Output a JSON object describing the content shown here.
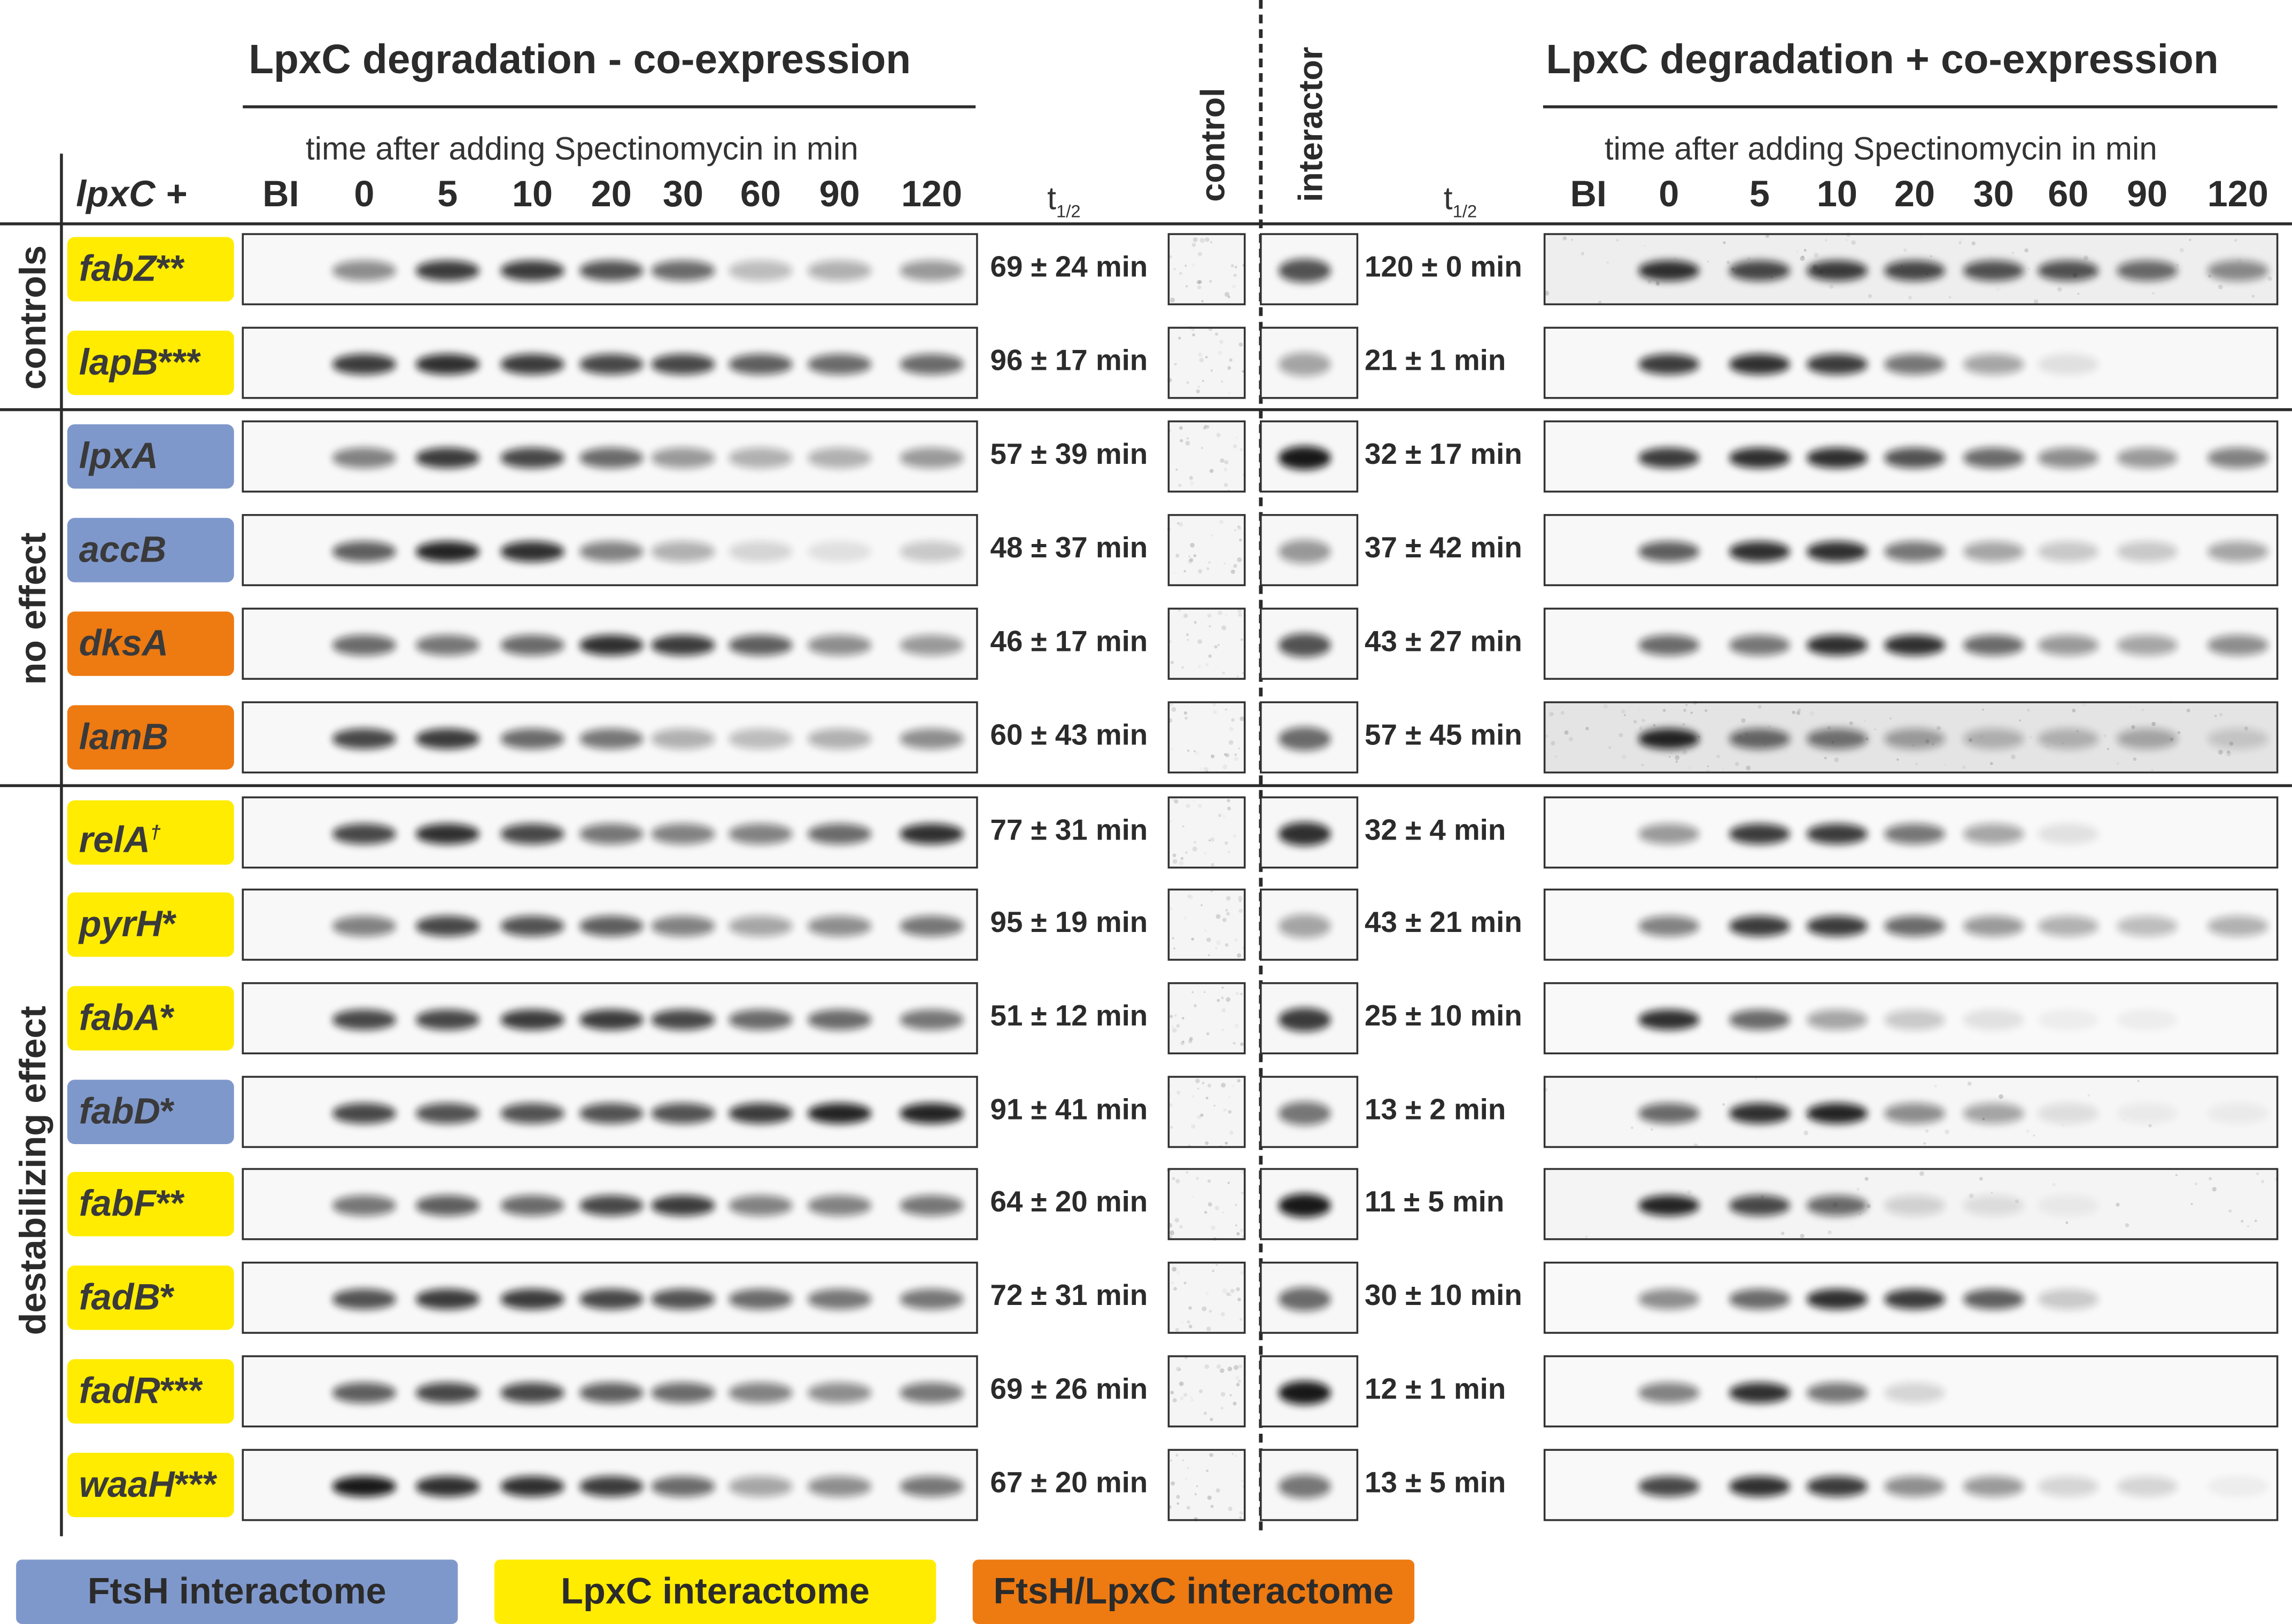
{
  "colors": {
    "ftsh": "#7f98cc",
    "lpxc": "#ffec00",
    "both": "#ee7a12"
  },
  "header": {
    "left_title": "LpxC degradation - co-expression",
    "right_title": "LpxC degradation + co-expression",
    "left_subtitle": "time after adding Spectinomycin in min",
    "right_subtitle": "time after adding Spectinomycin in min",
    "lpxc_label": "lpxC +",
    "thalf_main": "t",
    "thalf_sub": "1/2",
    "control_label": "control",
    "interactor_label": "interactor",
    "timepoints": [
      "BI",
      "0",
      "5",
      "10",
      "20",
      "30",
      "60",
      "90",
      "120"
    ]
  },
  "groups": {
    "controls": "controls",
    "no_effect": "no effect",
    "destabilizing": "destabilizing effect"
  },
  "rows": [
    {
      "gene": "fabZ",
      "suffix": "**",
      "category": "lpxc",
      "t_minus": "69 ± 24 min",
      "t_plus": "120 ± 0 min",
      "left_bands": [
        0,
        0.45,
        0.8,
        0.8,
        0.7,
        0.6,
        0.25,
        0.3,
        0.4
      ],
      "right_bands": [
        0,
        0.85,
        0.75,
        0.8,
        0.75,
        0.7,
        0.7,
        0.6,
        0.45
      ],
      "control_band": 0,
      "interactor_band": 0.7,
      "right_noise": 0.3
    },
    {
      "gene": "lapB",
      "suffix": "***",
      "category": "lpxc",
      "t_minus": "96 ± 17 min",
      "t_plus": "21 ± 1 min",
      "left_bands": [
        0,
        0.8,
        0.85,
        0.8,
        0.75,
        0.75,
        0.65,
        0.6,
        0.6
      ],
      "right_bands": [
        0,
        0.8,
        0.85,
        0.8,
        0.55,
        0.35,
        0.1,
        0,
        0
      ],
      "control_band": 0,
      "interactor_band": 0.35,
      "right_noise": 0.05
    },
    {
      "gene": "lpxA",
      "suffix": "",
      "category": "ftsh",
      "t_minus": "57 ± 39 min",
      "t_plus": "32 ± 17 min",
      "left_bands": [
        0,
        0.5,
        0.8,
        0.75,
        0.6,
        0.4,
        0.3,
        0.3,
        0.4
      ],
      "right_bands": [
        0,
        0.8,
        0.85,
        0.85,
        0.7,
        0.6,
        0.45,
        0.4,
        0.5
      ],
      "control_band": 0,
      "interactor_band": 0.95,
      "right_noise": 0.05
    },
    {
      "gene": "accB",
      "suffix": "",
      "category": "ftsh",
      "t_minus": "48 ± 37 min",
      "t_plus": "37 ± 42 min",
      "left_bands": [
        0,
        0.65,
        0.9,
        0.85,
        0.5,
        0.3,
        0.15,
        0.1,
        0.2
      ],
      "right_bands": [
        0,
        0.65,
        0.85,
        0.85,
        0.55,
        0.35,
        0.2,
        0.2,
        0.35
      ],
      "control_band": 0,
      "interactor_band": 0.4,
      "right_noise": 0.05
    },
    {
      "gene": "dksA",
      "suffix": "",
      "category": "both",
      "t_minus": "46 ± 17 min",
      "t_plus": "43 ± 27 min",
      "left_bands": [
        0,
        0.6,
        0.55,
        0.6,
        0.85,
        0.8,
        0.65,
        0.45,
        0.4
      ],
      "right_bands": [
        0,
        0.6,
        0.55,
        0.85,
        0.85,
        0.6,
        0.4,
        0.35,
        0.45
      ],
      "control_band": 0,
      "interactor_band": 0.7,
      "right_noise": 0.05
    },
    {
      "gene": "lamB",
      "suffix": "",
      "category": "both",
      "t_minus": "60 ± 43 min",
      "t_plus": "57 ± 45 min",
      "left_bands": [
        0,
        0.75,
        0.8,
        0.6,
        0.55,
        0.3,
        0.25,
        0.3,
        0.45
      ],
      "right_bands": [
        0,
        0.9,
        0.6,
        0.55,
        0.35,
        0.25,
        0.25,
        0.3,
        0.15
      ],
      "control_band": 0,
      "interactor_band": 0.6,
      "right_noise": 0.55
    },
    {
      "gene": "relA",
      "suffix": "†",
      "category": "lpxc",
      "t_minus": "77 ± 31 min",
      "t_plus": "32 ± 4 min",
      "left_bands": [
        0,
        0.75,
        0.85,
        0.75,
        0.55,
        0.5,
        0.5,
        0.6,
        0.85
      ],
      "right_bands": [
        0,
        0.4,
        0.8,
        0.8,
        0.55,
        0.35,
        0.1,
        0,
        0
      ],
      "control_band": 0,
      "interactor_band": 0.85,
      "right_noise": 0.03
    },
    {
      "gene": "pyrH",
      "suffix": "*",
      "category": "lpxc",
      "t_minus": "95 ± 19 min",
      "t_plus": "43 ± 21 min",
      "left_bands": [
        0,
        0.5,
        0.75,
        0.7,
        0.65,
        0.5,
        0.35,
        0.45,
        0.55
      ],
      "right_bands": [
        0,
        0.5,
        0.8,
        0.8,
        0.6,
        0.4,
        0.3,
        0.25,
        0.3
      ],
      "control_band": 0,
      "interactor_band": 0.35,
      "right_noise": 0.03
    },
    {
      "gene": "fabA",
      "suffix": "*",
      "category": "lpxc",
      "t_minus": "51 ± 12 min",
      "t_plus": "25 ± 10 min",
      "left_bands": [
        0,
        0.75,
        0.75,
        0.8,
        0.8,
        0.75,
        0.6,
        0.6,
        0.55
      ],
      "right_bands": [
        0,
        0.85,
        0.6,
        0.35,
        0.2,
        0.1,
        0.05,
        0.05,
        0
      ],
      "control_band": 0,
      "interactor_band": 0.8,
      "right_noise": 0.03
    },
    {
      "gene": "fabD",
      "suffix": "*",
      "category": "ftsh",
      "t_minus": "91 ± 41 min",
      "t_plus": "13 ± 2 min",
      "left_bands": [
        0,
        0.75,
        0.7,
        0.7,
        0.7,
        0.7,
        0.8,
        0.9,
        0.9
      ],
      "right_bands": [
        0,
        0.6,
        0.85,
        0.9,
        0.45,
        0.35,
        0.1,
        0.05,
        0.05
      ],
      "control_band": 0,
      "interactor_band": 0.55,
      "right_noise": 0.1
    },
    {
      "gene": "fabF",
      "suffix": "**",
      "category": "lpxc",
      "t_minus": "64 ± 20 min",
      "t_plus": "11 ± 5 min",
      "left_bands": [
        0,
        0.55,
        0.65,
        0.6,
        0.75,
        0.8,
        0.5,
        0.5,
        0.55
      ],
      "right_bands": [
        0,
        0.9,
        0.75,
        0.6,
        0.15,
        0.1,
        0.05,
        0,
        0
      ],
      "control_band": 0,
      "interactor_band": 0.95,
      "right_noise": 0.15
    },
    {
      "gene": "fadB",
      "suffix": "*",
      "category": "lpxc",
      "t_minus": "72 ± 31 min",
      "t_plus": "30 ± 10 min",
      "left_bands": [
        0,
        0.7,
        0.8,
        0.8,
        0.75,
        0.7,
        0.6,
        0.55,
        0.55
      ],
      "right_bands": [
        0,
        0.45,
        0.6,
        0.85,
        0.8,
        0.65,
        0.2,
        0,
        0
      ],
      "control_band": 0,
      "interactor_band": 0.6,
      "right_noise": 0.03
    },
    {
      "gene": "fadR",
      "suffix": "***",
      "category": "lpxc",
      "t_minus": "69 ± 26 min",
      "t_plus": "12 ± 1 min",
      "left_bands": [
        0,
        0.65,
        0.75,
        0.75,
        0.65,
        0.6,
        0.5,
        0.45,
        0.55
      ],
      "right_bands": [
        0,
        0.5,
        0.85,
        0.55,
        0.15,
        0,
        0,
        0,
        0
      ],
      "control_band": 0,
      "interactor_band": 0.95,
      "right_noise": 0.03
    },
    {
      "gene": "waaH",
      "suffix": "***",
      "category": "lpxc",
      "t_minus": "67 ± 20 min",
      "t_plus": "13 ± 5 min",
      "left_bands": [
        0,
        0.95,
        0.85,
        0.85,
        0.8,
        0.6,
        0.35,
        0.45,
        0.55
      ],
      "right_bands": [
        0,
        0.75,
        0.85,
        0.8,
        0.45,
        0.4,
        0.15,
        0.15,
        0.05
      ],
      "control_band": 0,
      "interactor_band": 0.55,
      "right_noise": 0.03
    }
  ],
  "legend": [
    {
      "label": "FtsH interactome",
      "category": "ftsh"
    },
    {
      "label": "LpxC interactome",
      "category": "lpxc"
    },
    {
      "label": "FtsH/LpxC interactome",
      "category": "both"
    }
  ]
}
